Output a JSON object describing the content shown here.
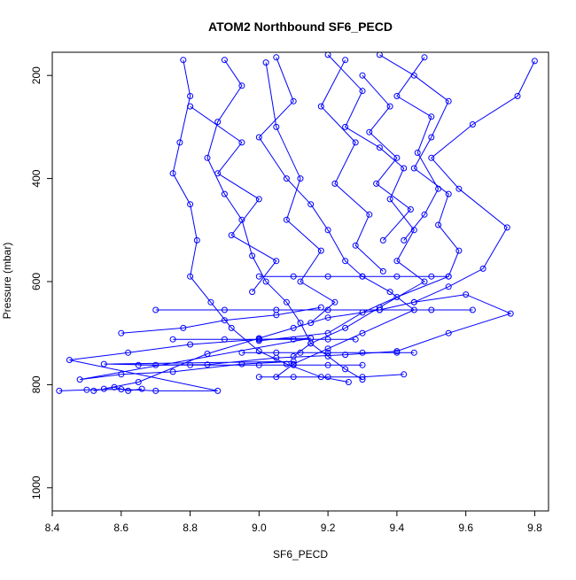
{
  "chart_data": {
    "type": "line",
    "title": "ATOM2 Northbound SF6_PECD",
    "xlabel": "SF6_PECD",
    "ylabel": "Pressure (mbar)",
    "xlim": [
      8.4,
      9.84
    ],
    "ylim": [
      1045,
      155
    ],
    "y_inverted": true,
    "x_ticks": [
      "8.4",
      "8.6",
      "8.8",
      "9.0",
      "9.2",
      "9.4",
      "9.6",
      "9.8"
    ],
    "y_ticks": [
      "200",
      "400",
      "600",
      "800",
      "1000"
    ],
    "grid": false,
    "marker": "open-circle",
    "color": "#0000ff",
    "series": [
      {
        "values": [
          {
            "x": 8.42,
            "y": 812
          },
          {
            "x": 8.5,
            "y": 810
          },
          {
            "x": 8.6,
            "y": 809
          },
          {
            "x": 8.7,
            "y": 812
          },
          {
            "x": 8.88,
            "y": 812
          },
          {
            "x": 8.45,
            "y": 752
          },
          {
            "x": 8.62,
            "y": 738
          },
          {
            "x": 8.8,
            "y": 722
          },
          {
            "x": 9.0,
            "y": 712
          },
          {
            "x": 9.15,
            "y": 710
          },
          {
            "x": 8.48,
            "y": 790
          },
          {
            "x": 8.6,
            "y": 780
          },
          {
            "x": 8.75,
            "y": 775
          },
          {
            "x": 8.95,
            "y": 760
          },
          {
            "x": 9.1,
            "y": 755
          },
          {
            "x": 8.55,
            "y": 760
          },
          {
            "x": 8.7,
            "y": 762
          },
          {
            "x": 8.85,
            "y": 761
          },
          {
            "x": 9.05,
            "y": 748
          },
          {
            "x": 9.25,
            "y": 742
          },
          {
            "x": 9.4,
            "y": 735
          },
          {
            "x": 9.55,
            "y": 700
          },
          {
            "x": 9.73,
            "y": 662
          },
          {
            "x": 9.6,
            "y": 625
          },
          {
            "x": 9.45,
            "y": 640
          }
        ]
      },
      {
        "values": [
          {
            "x": 8.55,
            "y": 808
          },
          {
            "x": 8.65,
            "y": 795
          },
          {
            "x": 8.85,
            "y": 740
          },
          {
            "x": 9.0,
            "y": 710
          },
          {
            "x": 9.1,
            "y": 690
          },
          {
            "x": 9.2,
            "y": 670
          },
          {
            "x": 9.35,
            "y": 655
          },
          {
            "x": 9.45,
            "y": 640
          },
          {
            "x": 9.55,
            "y": 610
          },
          {
            "x": 9.65,
            "y": 575
          },
          {
            "x": 9.72,
            "y": 495
          },
          {
            "x": 9.58,
            "y": 420
          },
          {
            "x": 9.5,
            "y": 360
          },
          {
            "x": 9.62,
            "y": 295
          },
          {
            "x": 9.75,
            "y": 240
          },
          {
            "x": 9.8,
            "y": 172
          }
        ]
      },
      {
        "values": [
          {
            "x": 8.78,
            "y": 170
          },
          {
            "x": 8.8,
            "y": 240
          },
          {
            "x": 8.77,
            "y": 330
          },
          {
            "x": 8.75,
            "y": 390
          },
          {
            "x": 8.8,
            "y": 450
          },
          {
            "x": 8.82,
            "y": 520
          },
          {
            "x": 8.8,
            "y": 590
          },
          {
            "x": 8.86,
            "y": 640
          },
          {
            "x": 8.92,
            "y": 690
          },
          {
            "x": 9.0,
            "y": 735
          },
          {
            "x": 9.08,
            "y": 760
          },
          {
            "x": 9.18,
            "y": 785
          },
          {
            "x": 9.26,
            "y": 795
          }
        ]
      },
      {
        "values": [
          {
            "x": 8.9,
            "y": 170
          },
          {
            "x": 8.95,
            "y": 220
          },
          {
            "x": 8.88,
            "y": 290
          },
          {
            "x": 8.85,
            "y": 360
          },
          {
            "x": 8.9,
            "y": 430
          },
          {
            "x": 8.95,
            "y": 480
          },
          {
            "x": 8.98,
            "y": 550
          },
          {
            "x": 9.02,
            "y": 600
          },
          {
            "x": 9.08,
            "y": 640
          },
          {
            "x": 9.12,
            "y": 680
          },
          {
            "x": 9.15,
            "y": 720
          },
          {
            "x": 9.2,
            "y": 745
          },
          {
            "x": 9.25,
            "y": 770
          },
          {
            "x": 9.3,
            "y": 790
          }
        ]
      },
      {
        "values": [
          {
            "x": 9.05,
            "y": 165
          },
          {
            "x": 9.1,
            "y": 250
          },
          {
            "x": 9.0,
            "y": 320
          },
          {
            "x": 9.08,
            "y": 400
          },
          {
            "x": 9.15,
            "y": 450
          },
          {
            "x": 9.2,
            "y": 500
          },
          {
            "x": 9.25,
            "y": 560
          },
          {
            "x": 9.3,
            "y": 590
          },
          {
            "x": 9.38,
            "y": 620
          },
          {
            "x": 9.45,
            "y": 655
          },
          {
            "x": 9.3,
            "y": 700
          },
          {
            "x": 9.2,
            "y": 730
          },
          {
            "x": 9.1,
            "y": 760
          },
          {
            "x": 9.05,
            "y": 785
          }
        ]
      },
      {
        "values": [
          {
            "x": 9.2,
            "y": 160
          },
          {
            "x": 9.3,
            "y": 230
          },
          {
            "x": 9.25,
            "y": 300
          },
          {
            "x": 9.35,
            "y": 340
          },
          {
            "x": 9.42,
            "y": 380
          },
          {
            "x": 9.38,
            "y": 440
          },
          {
            "x": 9.45,
            "y": 500
          },
          {
            "x": 9.4,
            "y": 560
          },
          {
            "x": 9.48,
            "y": 600
          },
          {
            "x": 9.35,
            "y": 650
          },
          {
            "x": 9.25,
            "y": 690
          },
          {
            "x": 9.15,
            "y": 720
          },
          {
            "x": 9.1,
            "y": 745
          }
        ]
      },
      {
        "values": [
          {
            "x": 9.35,
            "y": 160
          },
          {
            "x": 9.45,
            "y": 200
          },
          {
            "x": 9.55,
            "y": 250
          },
          {
            "x": 9.5,
            "y": 320
          },
          {
            "x": 9.45,
            "y": 380
          },
          {
            "x": 9.55,
            "y": 430
          },
          {
            "x": 9.52,
            "y": 490
          },
          {
            "x": 9.58,
            "y": 540
          },
          {
            "x": 9.55,
            "y": 590
          },
          {
            "x": 9.4,
            "y": 630
          },
          {
            "x": 9.3,
            "y": 660
          },
          {
            "x": 9.2,
            "y": 700
          },
          {
            "x": 9.0,
            "y": 715
          }
        ]
      },
      {
        "values": [
          {
            "x": 9.0,
            "y": 590
          },
          {
            "x": 9.1,
            "y": 590
          },
          {
            "x": 9.2,
            "y": 590
          },
          {
            "x": 9.3,
            "y": 590
          },
          {
            "x": 9.4,
            "y": 590
          },
          {
            "x": 9.5,
            "y": 590
          },
          {
            "x": 9.55,
            "y": 590
          }
        ]
      },
      {
        "values": [
          {
            "x": 8.7,
            "y": 655
          },
          {
            "x": 8.9,
            "y": 655
          },
          {
            "x": 9.05,
            "y": 655
          },
          {
            "x": 9.2,
            "y": 655
          },
          {
            "x": 9.35,
            "y": 655
          },
          {
            "x": 9.5,
            "y": 655
          },
          {
            "x": 9.62,
            "y": 655
          }
        ]
      },
      {
        "values": [
          {
            "x": 8.95,
            "y": 738
          },
          {
            "x": 9.05,
            "y": 738
          },
          {
            "x": 9.12,
            "y": 738
          },
          {
            "x": 9.2,
            "y": 738
          },
          {
            "x": 9.3,
            "y": 738
          },
          {
            "x": 9.4,
            "y": 738
          },
          {
            "x": 9.45,
            "y": 738
          }
        ]
      },
      {
        "values": [
          {
            "x": 8.75,
            "y": 712
          },
          {
            "x": 8.9,
            "y": 712
          },
          {
            "x": 9.0,
            "y": 712
          },
          {
            "x": 9.1,
            "y": 712
          },
          {
            "x": 9.2,
            "y": 712
          },
          {
            "x": 9.28,
            "y": 712
          }
        ]
      },
      {
        "values": [
          {
            "x": 8.65,
            "y": 762
          },
          {
            "x": 8.8,
            "y": 762
          },
          {
            "x": 9.0,
            "y": 762
          },
          {
            "x": 9.1,
            "y": 762
          },
          {
            "x": 9.2,
            "y": 762
          },
          {
            "x": 9.3,
            "y": 762
          }
        ]
      },
      {
        "values": [
          {
            "x": 9.0,
            "y": 785
          },
          {
            "x": 9.1,
            "y": 785
          },
          {
            "x": 9.2,
            "y": 785
          },
          {
            "x": 9.3,
            "y": 785
          },
          {
            "x": 9.42,
            "y": 780
          }
        ]
      },
      {
        "values": [
          {
            "x": 9.02,
            "y": 175
          },
          {
            "x": 9.05,
            "y": 300
          },
          {
            "x": 9.12,
            "y": 400
          },
          {
            "x": 9.08,
            "y": 480
          },
          {
            "x": 9.18,
            "y": 540
          },
          {
            "x": 9.12,
            "y": 600
          },
          {
            "x": 9.22,
            "y": 640
          },
          {
            "x": 9.15,
            "y": 680
          }
        ]
      },
      {
        "values": [
          {
            "x": 9.25,
            "y": 170
          },
          {
            "x": 9.18,
            "y": 260
          },
          {
            "x": 9.28,
            "y": 330
          },
          {
            "x": 9.22,
            "y": 410
          },
          {
            "x": 9.32,
            "y": 470
          },
          {
            "x": 9.28,
            "y": 530
          },
          {
            "x": 9.36,
            "y": 580
          }
        ]
      },
      {
        "values": [
          {
            "x": 9.48,
            "y": 165
          },
          {
            "x": 9.4,
            "y": 240
          },
          {
            "x": 9.5,
            "y": 280
          },
          {
            "x": 9.46,
            "y": 350
          },
          {
            "x": 9.52,
            "y": 420
          },
          {
            "x": 9.48,
            "y": 470
          },
          {
            "x": 9.42,
            "y": 520
          }
        ]
      },
      {
        "values": [
          {
            "x": 8.8,
            "y": 260
          },
          {
            "x": 8.95,
            "y": 330
          },
          {
            "x": 8.88,
            "y": 390
          },
          {
            "x": 9.0,
            "y": 440
          },
          {
            "x": 8.92,
            "y": 510
          },
          {
            "x": 9.05,
            "y": 560
          },
          {
            "x": 8.98,
            "y": 620
          }
        ]
      },
      {
        "values": [
          {
            "x": 9.3,
            "y": 200
          },
          {
            "x": 9.38,
            "y": 260
          },
          {
            "x": 9.32,
            "y": 310
          },
          {
            "x": 9.4,
            "y": 360
          },
          {
            "x": 9.34,
            "y": 410
          },
          {
            "x": 9.44,
            "y": 460
          },
          {
            "x": 9.36,
            "y": 520
          }
        ]
      },
      {
        "values": [
          {
            "x": 8.6,
            "y": 700
          },
          {
            "x": 8.78,
            "y": 690
          },
          {
            "x": 8.9,
            "y": 675
          },
          {
            "x": 9.05,
            "y": 665
          },
          {
            "x": 9.18,
            "y": 650
          }
        ]
      },
      {
        "values": [
          {
            "x": 8.52,
            "y": 812
          },
          {
            "x": 8.58,
            "y": 805
          },
          {
            "x": 8.62,
            "y": 812
          },
          {
            "x": 8.66,
            "y": 808
          }
        ]
      }
    ]
  }
}
